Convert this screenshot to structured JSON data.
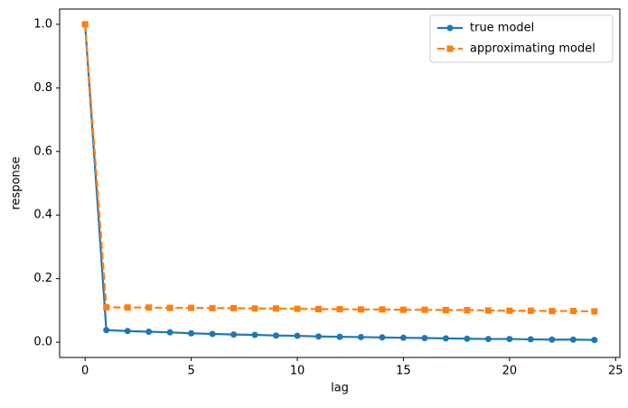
{
  "chart_data": {
    "type": "line",
    "x": [
      0,
      1,
      2,
      3,
      4,
      5,
      6,
      7,
      8,
      9,
      10,
      11,
      12,
      13,
      14,
      15,
      16,
      17,
      18,
      19,
      20,
      21,
      22,
      23,
      24
    ],
    "xlabel": "lag",
    "ylabel": "response",
    "xlim": [
      -1.2,
      25.2
    ],
    "xticks": [
      0,
      5,
      10,
      15,
      20,
      25
    ],
    "ylim": [
      -0.048,
      1.048
    ],
    "yticks": [
      {
        "value": 0,
        "label": "0.0"
      },
      0.2,
      0.4,
      0.6,
      0.8,
      {
        "value": 1,
        "label": "1.0"
      }
    ],
    "legend": "upper right",
    "series": [
      {
        "name": "true model",
        "color": "#1f77b4",
        "marker": "circle",
        "dash": false,
        "values": [
          1.0,
          0.038,
          0.035,
          0.033,
          0.031,
          0.028,
          0.026,
          0.024,
          0.023,
          0.021,
          0.02,
          0.018,
          0.017,
          0.016,
          0.015,
          0.014,
          0.013,
          0.012,
          0.011,
          0.01,
          0.01,
          0.009,
          0.008,
          0.008,
          0.007
        ]
      },
      {
        "name": "approximating model",
        "color": "#ff7f0e",
        "marker": "square",
        "dash": true,
        "values": [
          1.0,
          0.11,
          0.109,
          0.109,
          0.108,
          0.108,
          0.107,
          0.107,
          0.106,
          0.106,
          0.105,
          0.104,
          0.104,
          0.103,
          0.103,
          0.102,
          0.102,
          0.101,
          0.101,
          0.1,
          0.099,
          0.099,
          0.098,
          0.098,
          0.097
        ]
      }
    ]
  }
}
